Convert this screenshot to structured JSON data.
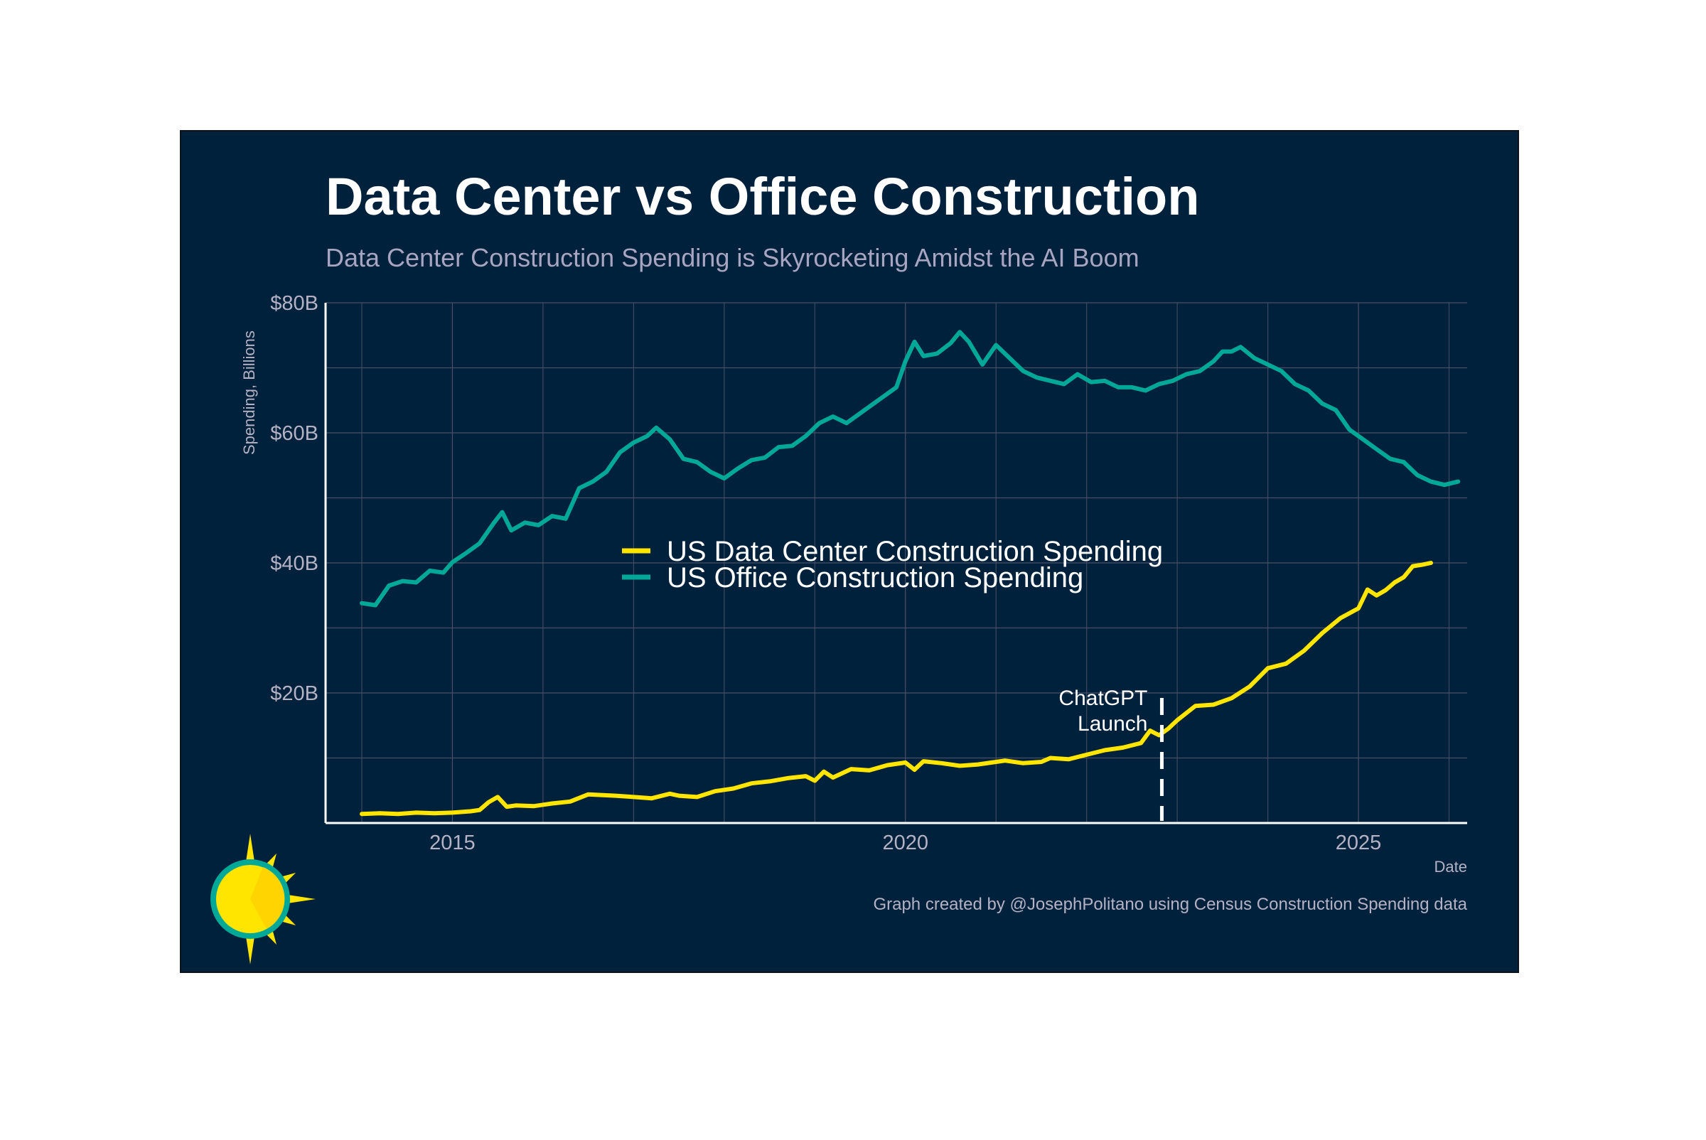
{
  "chart_data": {
    "type": "line",
    "title": "Data Center vs Office Construction",
    "subtitle": "Data Center Construction Spending is Skyrocketing Amidst the AI Boom",
    "xlabel": "Date",
    "ylabel": "Spending, Billions",
    "xlim": [
      2013.6,
      2026.2
    ],
    "ylim": [
      0,
      80
    ],
    "x_ticks": [
      2015,
      2020,
      2025
    ],
    "x_tick_labels": [
      "2015",
      "2020",
      "2025"
    ],
    "y_ticks": [
      20,
      40,
      60,
      80
    ],
    "y_tick_labels": [
      "$20B",
      "$40B",
      "$60B",
      "$80B"
    ],
    "y_minor_gridlines": [
      10,
      30,
      50,
      70
    ],
    "grid": true,
    "legend_position": "center",
    "series": [
      {
        "name": "US Data Center Construction Spending",
        "color": "#ffe500",
        "points": [
          [
            2014.0,
            1.4
          ],
          [
            2014.2,
            1.5
          ],
          [
            2014.4,
            1.4
          ],
          [
            2014.6,
            1.6
          ],
          [
            2014.8,
            1.5
          ],
          [
            2015.0,
            1.6
          ],
          [
            2015.2,
            1.8
          ],
          [
            2015.3,
            2.0
          ],
          [
            2015.4,
            3.2
          ],
          [
            2015.5,
            4.0
          ],
          [
            2015.6,
            2.5
          ],
          [
            2015.7,
            2.7
          ],
          [
            2015.9,
            2.6
          ],
          [
            2016.1,
            3.0
          ],
          [
            2016.3,
            3.3
          ],
          [
            2016.5,
            4.4
          ],
          [
            2016.8,
            4.2
          ],
          [
            2017.0,
            4.0
          ],
          [
            2017.2,
            3.8
          ],
          [
            2017.4,
            4.5
          ],
          [
            2017.5,
            4.2
          ],
          [
            2017.7,
            4.0
          ],
          [
            2017.9,
            4.9
          ],
          [
            2018.1,
            5.3
          ],
          [
            2018.3,
            6.1
          ],
          [
            2018.5,
            6.4
          ],
          [
            2018.7,
            6.9
          ],
          [
            2018.9,
            7.2
          ],
          [
            2019.0,
            6.5
          ],
          [
            2019.1,
            7.9
          ],
          [
            2019.2,
            7.0
          ],
          [
            2019.4,
            8.3
          ],
          [
            2019.6,
            8.1
          ],
          [
            2019.8,
            8.9
          ],
          [
            2020.0,
            9.3
          ],
          [
            2020.1,
            8.2
          ],
          [
            2020.2,
            9.5
          ],
          [
            2020.4,
            9.2
          ],
          [
            2020.6,
            8.8
          ],
          [
            2020.8,
            9.0
          ],
          [
            2021.0,
            9.4
          ],
          [
            2021.1,
            9.6
          ],
          [
            2021.3,
            9.2
          ],
          [
            2021.5,
            9.4
          ],
          [
            2021.6,
            10.0
          ],
          [
            2021.8,
            9.8
          ],
          [
            2022.0,
            10.5
          ],
          [
            2022.2,
            11.2
          ],
          [
            2022.4,
            11.6
          ],
          [
            2022.6,
            12.3
          ],
          [
            2022.7,
            14.2
          ],
          [
            2022.8,
            13.5
          ],
          [
            2022.9,
            14.5
          ],
          [
            2023.0,
            15.8
          ],
          [
            2023.2,
            18.0
          ],
          [
            2023.4,
            18.2
          ],
          [
            2023.6,
            19.2
          ],
          [
            2023.8,
            21.0
          ],
          [
            2024.0,
            23.8
          ],
          [
            2024.2,
            24.5
          ],
          [
            2024.4,
            26.5
          ],
          [
            2024.6,
            29.2
          ],
          [
            2024.8,
            31.5
          ],
          [
            2025.0,
            33.0
          ],
          [
            2025.1,
            35.9
          ],
          [
            2025.2,
            35.0
          ],
          [
            2025.3,
            35.8
          ],
          [
            2025.4,
            37.0
          ],
          [
            2025.5,
            37.8
          ],
          [
            2025.6,
            39.5
          ],
          [
            2025.7,
            39.7
          ],
          [
            2025.8,
            40.0
          ]
        ]
      },
      {
        "name": "US Office Construction Spending",
        "color": "#00a897",
        "points": [
          [
            2014.0,
            33.8
          ],
          [
            2014.15,
            33.5
          ],
          [
            2014.3,
            36.5
          ],
          [
            2014.45,
            37.2
          ],
          [
            2014.6,
            37.0
          ],
          [
            2014.75,
            38.8
          ],
          [
            2014.9,
            38.5
          ],
          [
            2015.0,
            40.1
          ],
          [
            2015.15,
            41.5
          ],
          [
            2015.3,
            43.0
          ],
          [
            2015.45,
            46.0
          ],
          [
            2015.55,
            47.8
          ],
          [
            2015.65,
            45.0
          ],
          [
            2015.8,
            46.2
          ],
          [
            2015.95,
            45.8
          ],
          [
            2016.1,
            47.2
          ],
          [
            2016.25,
            46.8
          ],
          [
            2016.4,
            51.5
          ],
          [
            2016.55,
            52.5
          ],
          [
            2016.7,
            54.0
          ],
          [
            2016.85,
            57.0
          ],
          [
            2017.0,
            58.5
          ],
          [
            2017.15,
            59.5
          ],
          [
            2017.25,
            60.8
          ],
          [
            2017.4,
            59.0
          ],
          [
            2017.55,
            56.0
          ],
          [
            2017.7,
            55.5
          ],
          [
            2017.85,
            54.0
          ],
          [
            2018.0,
            53.0
          ],
          [
            2018.15,
            54.5
          ],
          [
            2018.3,
            55.8
          ],
          [
            2018.45,
            56.2
          ],
          [
            2018.6,
            57.8
          ],
          [
            2018.75,
            58.0
          ],
          [
            2018.9,
            59.5
          ],
          [
            2019.05,
            61.5
          ],
          [
            2019.2,
            62.5
          ],
          [
            2019.35,
            61.5
          ],
          [
            2019.5,
            63.0
          ],
          [
            2019.65,
            64.5
          ],
          [
            2019.8,
            66.0
          ],
          [
            2019.9,
            67.0
          ],
          [
            2020.0,
            71.0
          ],
          [
            2020.1,
            74.0
          ],
          [
            2020.2,
            71.8
          ],
          [
            2020.35,
            72.2
          ],
          [
            2020.5,
            73.8
          ],
          [
            2020.6,
            75.5
          ],
          [
            2020.7,
            74.0
          ],
          [
            2020.85,
            70.5
          ],
          [
            2021.0,
            73.5
          ],
          [
            2021.15,
            71.5
          ],
          [
            2021.3,
            69.5
          ],
          [
            2021.45,
            68.5
          ],
          [
            2021.6,
            68.0
          ],
          [
            2021.75,
            67.5
          ],
          [
            2021.9,
            69.0
          ],
          [
            2022.05,
            67.8
          ],
          [
            2022.2,
            68.0
          ],
          [
            2022.35,
            67.0
          ],
          [
            2022.5,
            67.0
          ],
          [
            2022.65,
            66.5
          ],
          [
            2022.8,
            67.5
          ],
          [
            2022.95,
            68.0
          ],
          [
            2023.1,
            69.0
          ],
          [
            2023.25,
            69.5
          ],
          [
            2023.4,
            71.0
          ],
          [
            2023.5,
            72.5
          ],
          [
            2023.6,
            72.5
          ],
          [
            2023.7,
            73.2
          ],
          [
            2023.85,
            71.5
          ],
          [
            2024.0,
            70.5
          ],
          [
            2024.15,
            69.5
          ],
          [
            2024.3,
            67.5
          ],
          [
            2024.45,
            66.5
          ],
          [
            2024.6,
            64.5
          ],
          [
            2024.75,
            63.5
          ],
          [
            2024.9,
            60.5
          ],
          [
            2025.05,
            59.0
          ],
          [
            2025.2,
            57.5
          ],
          [
            2025.35,
            56.0
          ],
          [
            2025.5,
            55.5
          ],
          [
            2025.65,
            53.5
          ],
          [
            2025.8,
            52.5
          ],
          [
            2025.95,
            52.0
          ],
          [
            2026.1,
            52.5
          ]
        ]
      }
    ],
    "annotations": [
      {
        "text_lines": [
          "ChatGPT",
          "Launch"
        ],
        "x": 2022.83,
        "style": "dashed-vertical-line"
      }
    ],
    "caption": "Graph created by @JosephPolitano using Census Construction Spending data"
  },
  "logo": {
    "name": "sun-logo",
    "fill": "#ffe500",
    "ring": "#00a897"
  }
}
